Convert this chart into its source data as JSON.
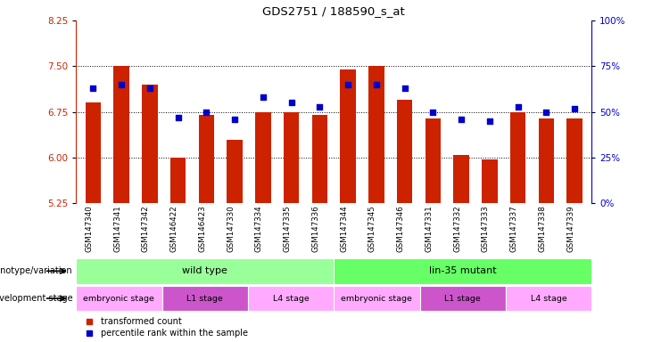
{
  "title": "GDS2751 / 188590_s_at",
  "samples": [
    "GSM147340",
    "GSM147341",
    "GSM147342",
    "GSM146422",
    "GSM146423",
    "GSM147330",
    "GSM147334",
    "GSM147335",
    "GSM147336",
    "GSM147344",
    "GSM147345",
    "GSM147346",
    "GSM147331",
    "GSM147332",
    "GSM147333",
    "GSM147337",
    "GSM147338",
    "GSM147339"
  ],
  "transformed_count": [
    6.9,
    7.5,
    7.2,
    6.0,
    6.7,
    6.3,
    6.75,
    6.75,
    6.7,
    7.45,
    7.5,
    6.95,
    6.65,
    6.05,
    5.97,
    6.75,
    6.65,
    6.65
  ],
  "percentile_rank": [
    63,
    65,
    63,
    47,
    50,
    46,
    58,
    55,
    53,
    65,
    65,
    63,
    50,
    46,
    45,
    53,
    50,
    52
  ],
  "ylim_left": [
    5.25,
    8.25
  ],
  "ylim_right": [
    0,
    100
  ],
  "yticks_left": [
    5.25,
    6.0,
    6.75,
    7.5,
    8.25
  ],
  "yticks_right": [
    0,
    25,
    50,
    75,
    100
  ],
  "ytick_labels_right": [
    "0%",
    "25%",
    "50%",
    "75%",
    "100%"
  ],
  "bar_color": "#cc2200",
  "dot_color": "#0000cc",
  "bar_bottom": 5.25,
  "dot_size": 25,
  "genotype_groups": [
    {
      "label": "wild type",
      "start": 0,
      "end": 9,
      "color": "#99ff99"
    },
    {
      "label": "lin-35 mutant",
      "start": 9,
      "end": 18,
      "color": "#66ff66"
    }
  ],
  "stage_groups": [
    {
      "label": "embryonic stage",
      "start": 0,
      "end": 3,
      "color": "#ffaaff"
    },
    {
      "label": "L1 stage",
      "start": 3,
      "end": 6,
      "color": "#cc55cc"
    },
    {
      "label": "L4 stage",
      "start": 6,
      "end": 9,
      "color": "#ffaaff"
    },
    {
      "label": "embryonic stage",
      "start": 9,
      "end": 12,
      "color": "#ffaaff"
    },
    {
      "label": "L1 stage",
      "start": 12,
      "end": 15,
      "color": "#cc55cc"
    },
    {
      "label": "L4 stage",
      "start": 15,
      "end": 18,
      "color": "#ffaaff"
    }
  ],
  "grid_dotted_yticks": [
    6.0,
    6.75,
    7.5
  ],
  "background_color": "#ffffff",
  "xtick_bg_color": "#cccccc",
  "legend_items": [
    {
      "label": "transformed count",
      "color": "#cc2200"
    },
    {
      "label": "percentile rank within the sample",
      "color": "#0000cc"
    }
  ]
}
